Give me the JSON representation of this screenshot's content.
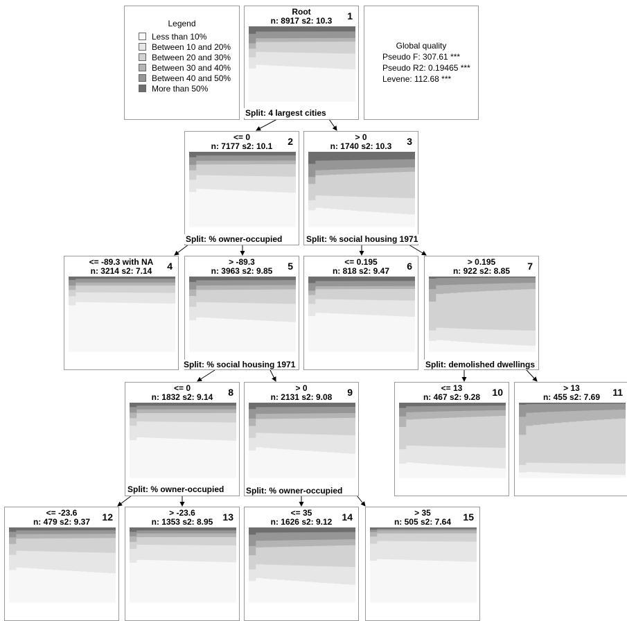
{
  "legend": {
    "title": "Legend",
    "items": [
      {
        "label": "Less than 10%",
        "color": "#f7f7f7"
      },
      {
        "label": "Between 10 and 20%",
        "color": "#e6e6e6"
      },
      {
        "label": "Between 20 and 30%",
        "color": "#d2d2d2"
      },
      {
        "label": "Between 30 and 40%",
        "color": "#b4b4b4"
      },
      {
        "label": "Between 40 and 50%",
        "color": "#969696"
      },
      {
        "label": "More than 50%",
        "color": "#6e6e6e"
      }
    ]
  },
  "quality": {
    "title": "Global quality",
    "lines": [
      "Pseudo F: 307.61 ***",
      "Pseudo R2: 0.19465 ***",
      "Levene: 112.68 ***"
    ]
  },
  "nodes": [
    {
      "id": "1",
      "title": "Root",
      "stats": "n: 8917 s2: 10.3",
      "split": "Split: 4 largest cities"
    },
    {
      "id": "2",
      "title": "<= 0",
      "stats": "n: 7177 s2: 10.1",
      "split": "Split: % owner-occupied"
    },
    {
      "id": "3",
      "title": "> 0",
      "stats": "n: 1740 s2: 10.3",
      "split": "Split: % social housing 1971"
    },
    {
      "id": "4",
      "title": "<= -89.3 with NA",
      "stats": "n: 3214 s2: 7.14",
      "split": ""
    },
    {
      "id": "5",
      "title": "> -89.3",
      "stats": "n: 3963 s2: 9.85",
      "split": "Split: % social housing 1971"
    },
    {
      "id": "6",
      "title": "<= 0.195",
      "stats": "n: 818 s2: 9.47",
      "split": ""
    },
    {
      "id": "7",
      "title": "> 0.195",
      "stats": "n: 922 s2: 8.85",
      "split": "Split: demolished dwellings"
    },
    {
      "id": "8",
      "title": "<= 0",
      "stats": "n: 1832 s2: 9.14",
      "split": "Split: % owner-occupied"
    },
    {
      "id": "9",
      "title": "> 0",
      "stats": "n: 2131 s2: 9.08",
      "split": "Split: % owner-occupied"
    },
    {
      "id": "10",
      "title": "<= 13",
      "stats": "n: 467 s2: 9.28",
      "split": ""
    },
    {
      "id": "11",
      "title": "> 13",
      "stats": "n: 455 s2: 7.69",
      "split": ""
    },
    {
      "id": "12",
      "title": "<= -23.6",
      "stats": "n: 479 s2: 9.37",
      "split": ""
    },
    {
      "id": "13",
      "title": "> -23.6",
      "stats": "n: 1353 s2: 8.95",
      "split": ""
    },
    {
      "id": "14",
      "title": "<= 35",
      "stats": "n: 1626 s2: 9.12",
      "split": ""
    },
    {
      "id": "15",
      "title": "> 35",
      "stats": "n: 505 s2: 7.64",
      "split": ""
    }
  ]
}
